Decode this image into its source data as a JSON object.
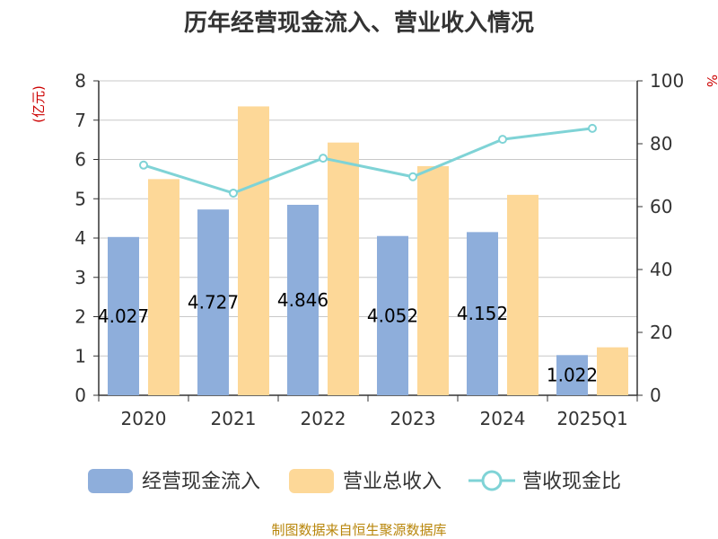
{
  "chart_data": {
    "type": "bar",
    "title": "历年经营现金流入、营业收入情况",
    "categories": [
      "2020",
      "2021",
      "2022",
      "2023",
      "2024",
      "2025Q1"
    ],
    "series": [
      {
        "name": "经营现金流入",
        "kind": "bar",
        "axis": "left",
        "color": "#8eaedb",
        "values": [
          4.027,
          4.727,
          4.846,
          4.052,
          4.152,
          1.022
        ],
        "labels": [
          "4.027",
          "4.727",
          "4.846",
          "4.052",
          "4.152",
          "1.022"
        ]
      },
      {
        "name": "营业总收入",
        "kind": "bar",
        "axis": "left",
        "color": "#fdd898",
        "values": [
          5.5,
          7.35,
          6.43,
          5.83,
          5.1,
          1.22
        ]
      },
      {
        "name": "营收现金比",
        "kind": "line",
        "axis": "right",
        "color": "#7fd3d6",
        "values": [
          73.2,
          64.3,
          75.4,
          69.5,
          81.4,
          84.9
        ]
      }
    ],
    "y_left": {
      "label": "(亿元)",
      "min": 0,
      "max": 8,
      "ticks": [
        "0",
        "1",
        "2",
        "3",
        "4",
        "5",
        "6",
        "7",
        "8"
      ]
    },
    "y_right": {
      "label": "%",
      "min": 0,
      "max": 100,
      "ticks": [
        "0",
        "20",
        "40",
        "60",
        "80",
        "100"
      ]
    },
    "grid": true,
    "legend_position": "bottom"
  },
  "source": "制图数据来自恒生聚源数据库"
}
